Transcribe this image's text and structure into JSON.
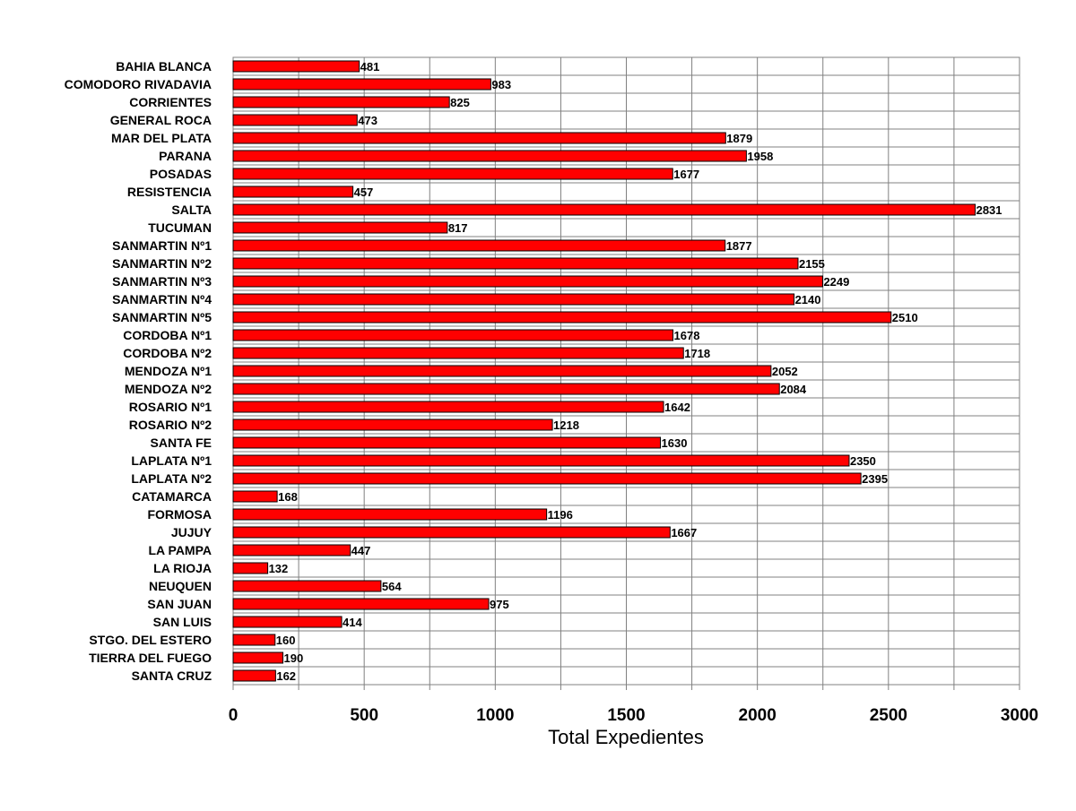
{
  "chart_data": {
    "type": "bar",
    "orientation": "horizontal",
    "title": "",
    "xlabel": "Total Expedientes",
    "ylabel": "",
    "xlim": [
      0,
      3000
    ],
    "xticks": [
      0,
      500,
      1000,
      1500,
      2000,
      2500,
      3000
    ],
    "grid": true,
    "bar_color": "#ff0000",
    "categories": [
      "BAHIA BLANCA",
      "COMODORO RIVADAVIA",
      "CORRIENTES",
      "GENERAL ROCA",
      "MAR DEL PLATA",
      "PARANA",
      "POSADAS",
      "RESISTENCIA",
      "SALTA",
      "TUCUMAN",
      "SANMARTIN Nº1",
      "SANMARTIN Nº2",
      "SANMARTIN Nº3",
      "SANMARTIN Nº4",
      "SANMARTIN Nº5",
      "CORDOBA Nº1",
      "CORDOBA Nº2",
      "MENDOZA Nº1",
      "MENDOZA Nº2",
      "ROSARIO Nº1",
      "ROSARIO Nº2",
      "SANTA FE",
      "LAPLATA Nº1",
      "LAPLATA Nº2",
      "CATAMARCA",
      "FORMOSA",
      "JUJUY",
      "LA PAMPA",
      "LA RIOJA",
      "NEUQUEN",
      "SAN JUAN",
      "SAN LUIS",
      "STGO. DEL ESTERO",
      "TIERRA DEL FUEGO",
      "SANTA CRUZ"
    ],
    "values": [
      481,
      983,
      825,
      473,
      1879,
      1958,
      1677,
      457,
      2831,
      817,
      1877,
      2155,
      2249,
      2140,
      2510,
      1678,
      1718,
      2052,
      2084,
      1642,
      1218,
      1630,
      2350,
      2395,
      168,
      1196,
      1667,
      447,
      132,
      564,
      975,
      414,
      160,
      190,
      162
    ]
  }
}
